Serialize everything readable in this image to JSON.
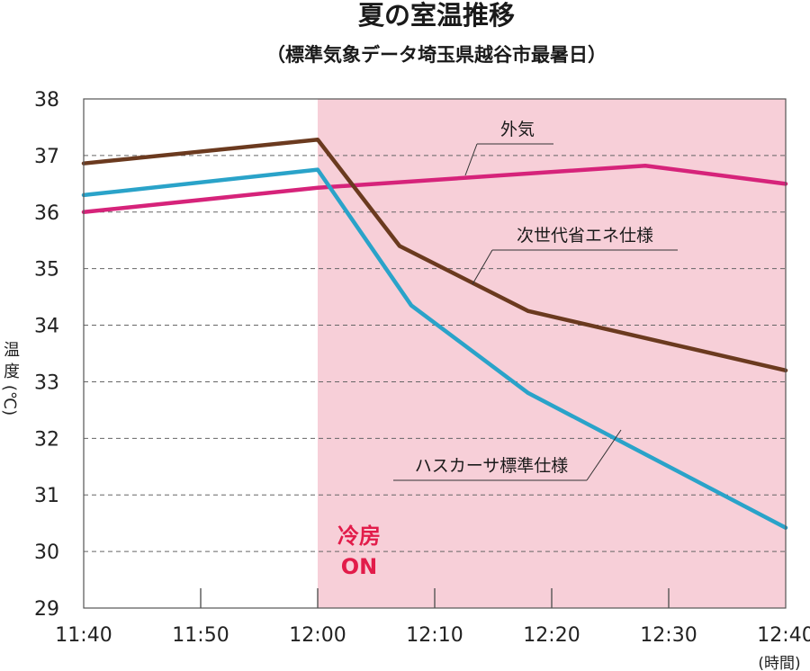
{
  "chart_data": {
    "type": "line",
    "title": "夏の室温推移",
    "subtitle": "（標準気象データ埼玉県越谷市最暑日）",
    "ylabel": "温度(℃)",
    "xlabel": "",
    "x_unit": "(時間)",
    "ylim": [
      29,
      38
    ],
    "yticks": [
      29,
      30,
      31,
      32,
      33,
      34,
      35,
      36,
      37,
      38
    ],
    "xticks": [
      "11:40",
      "11:50",
      "12:00",
      "12:10",
      "12:20",
      "12:30",
      "12:40"
    ],
    "grid": "horizontal-dashed",
    "highlight": {
      "from": "12:00",
      "to": "12:40",
      "color": "#f7cfd8"
    },
    "annotation": {
      "lines": [
        "冷房",
        "ON"
      ],
      "color": "#e21c4a"
    },
    "series": [
      {
        "name": "外気",
        "color": "#d6237a",
        "points": [
          [
            "11:40",
            36.0
          ],
          [
            "12:00",
            36.43
          ],
          [
            "12:28",
            36.82
          ],
          [
            "12:40",
            36.5
          ]
        ]
      },
      {
        "name": "次世代省エネ仕様",
        "color": "#6b3a1f",
        "points": [
          [
            "11:40",
            36.86
          ],
          [
            "12:00",
            37.28
          ],
          [
            "12:07",
            35.4
          ],
          [
            "12:18",
            34.25
          ],
          [
            "12:40",
            33.2
          ]
        ]
      },
      {
        "name": "ハスカーサ標準仕様",
        "color": "#2aa3c9",
        "points": [
          [
            "11:40",
            36.3
          ],
          [
            "12:00",
            36.75
          ],
          [
            "12:08",
            34.35
          ],
          [
            "12:18",
            32.8
          ],
          [
            "12:40",
            30.42
          ]
        ]
      }
    ]
  }
}
